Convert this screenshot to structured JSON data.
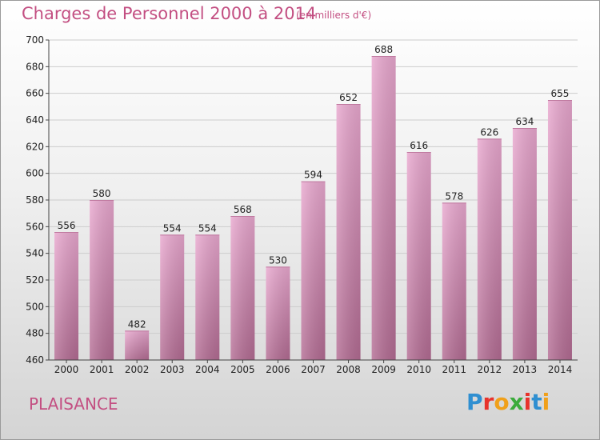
{
  "header": {
    "title": "Charges de Personnel 2000 à 2014",
    "subtitle": "(en milliers d'€)"
  },
  "footer": {
    "location": "PLAISANCE",
    "logo_text": "Proxiti",
    "logo_colors": [
      "#2f8fd1",
      "#e8332b",
      "#f0a01a",
      "#3bab3c",
      "#e8332b",
      "#2f8fd1",
      "#f0a01a"
    ]
  },
  "colors": {
    "bar_top": "#e9a8cf",
    "bar_bottom": "#b36c93",
    "grid": "#cccccc",
    "axis_text": "#222222"
  },
  "chart_data": {
    "type": "bar",
    "categories": [
      "2000",
      "2001",
      "2002",
      "2003",
      "2004",
      "2005",
      "2006",
      "2007",
      "2008",
      "2009",
      "2010",
      "2011",
      "2012",
      "2013",
      "2014"
    ],
    "values": [
      556,
      580,
      482,
      554,
      554,
      568,
      530,
      594,
      652,
      688,
      616,
      578,
      626,
      634,
      655
    ],
    "data_labels": [
      "556",
      "580",
      "482",
      "554",
      "554",
      "568",
      "530",
      "594",
      "652",
      "688",
      "616",
      "578",
      "626",
      "634",
      "655"
    ],
    "yticks": [
      460,
      480,
      500,
      520,
      540,
      560,
      580,
      600,
      620,
      640,
      660,
      680,
      700
    ],
    "ylim": [
      460,
      700
    ],
    "grid": true,
    "legend": "none"
  }
}
